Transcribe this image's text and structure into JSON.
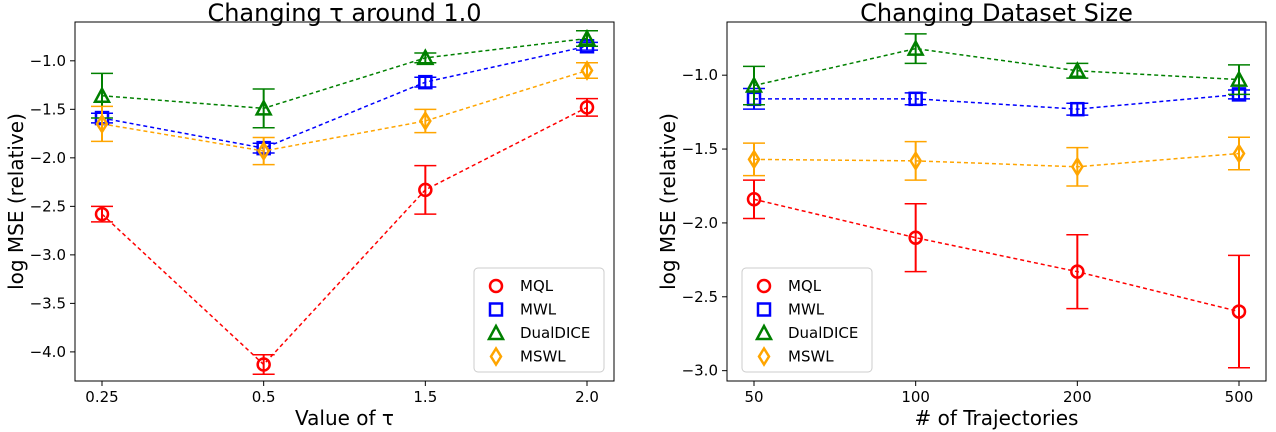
{
  "chart_data": [
    {
      "type": "line",
      "title": "Changing τ around 1.0",
      "xlabel": "Value of τ",
      "ylabel": "log MSE (relative)",
      "categories": [
        "0.25",
        "0.5",
        "1.5",
        "2.0"
      ],
      "ylim": [
        -4.3,
        -0.6
      ],
      "yticks": [
        -1.0,
        -1.5,
        -2.0,
        -2.5,
        -3.0,
        -3.5,
        -4.0
      ],
      "ytick_labels": [
        "−1.0",
        "−1.5",
        "−2.0",
        "−2.5",
        "−3.0",
        "−3.5",
        "−4.0"
      ],
      "grid": false,
      "legend_position": "bottom-right",
      "series": [
        {
          "name": "MQL",
          "color": "#ff0000",
          "marker": "circle",
          "values": [
            -2.58,
            -4.13,
            -2.33,
            -1.48
          ],
          "errors": [
            0.08,
            0.1,
            0.25,
            0.09
          ]
        },
        {
          "name": "MWL",
          "color": "#0000ff",
          "marker": "square",
          "values": [
            -1.59,
            -1.9,
            -1.22,
            -0.85
          ],
          "errors": [
            0.05,
            0.05,
            0.05,
            0.04
          ]
        },
        {
          "name": "DualDICE",
          "color": "#008000",
          "marker": "triangle",
          "values": [
            -1.36,
            -1.49,
            -0.97,
            -0.77
          ],
          "errors": [
            0.23,
            0.2,
            0.05,
            0.08
          ]
        },
        {
          "name": "MSWL",
          "color": "#ffa500",
          "marker": "diamond",
          "values": [
            -1.65,
            -1.93,
            -1.62,
            -1.1
          ],
          "errors": [
            0.18,
            0.14,
            0.12,
            0.08
          ]
        }
      ]
    },
    {
      "type": "line",
      "title": "Changing Dataset Size",
      "xlabel": "# of Trajectories",
      "ylabel": "log MSE (relative)",
      "categories": [
        "50",
        "100",
        "200",
        "500"
      ],
      "ylim": [
        -3.07,
        -0.64
      ],
      "yticks": [
        -1.0,
        -1.5,
        -2.0,
        -2.5,
        -3.0
      ],
      "ytick_labels": [
        "−1.0",
        "−1.5",
        "−2.0",
        "−2.5",
        "−3.0"
      ],
      "grid": false,
      "legend_position": "bottom-left",
      "series": [
        {
          "name": "MQL",
          "color": "#ff0000",
          "marker": "circle",
          "values": [
            -1.84,
            -2.1,
            -2.33,
            -2.6
          ],
          "errors": [
            0.13,
            0.23,
            0.25,
            0.38
          ]
        },
        {
          "name": "MWL",
          "color": "#0000ff",
          "marker": "square",
          "values": [
            -1.16,
            -1.16,
            -1.23,
            -1.13
          ],
          "errors": [
            0.07,
            0.04,
            0.04,
            0.03
          ]
        },
        {
          "name": "DualDICE",
          "color": "#008000",
          "marker": "triangle",
          "values": [
            -1.07,
            -0.82,
            -0.97,
            -1.03
          ],
          "errors": [
            0.13,
            0.1,
            0.05,
            0.1
          ]
        },
        {
          "name": "MSWL",
          "color": "#ffa500",
          "marker": "diamond",
          "values": [
            -1.57,
            -1.58,
            -1.62,
            -1.53
          ],
          "errors": [
            0.11,
            0.13,
            0.13,
            0.11
          ]
        }
      ]
    }
  ]
}
